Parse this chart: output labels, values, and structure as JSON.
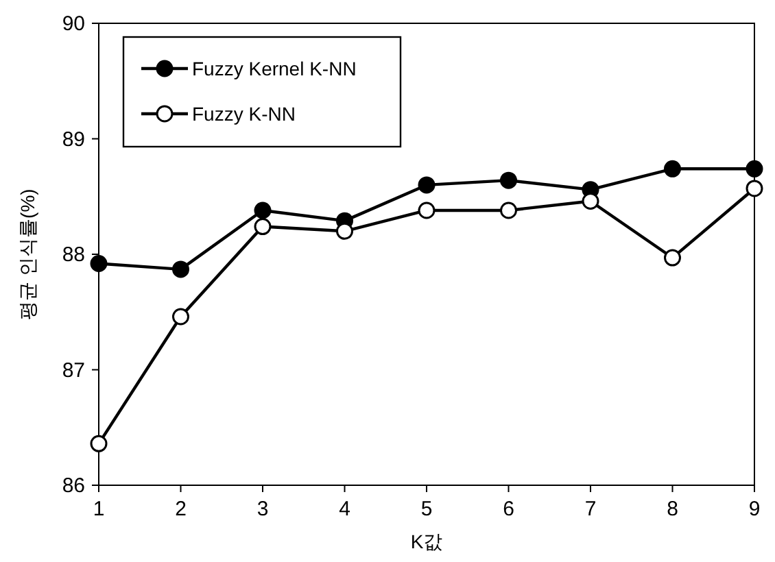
{
  "chart_data": {
    "type": "line",
    "xlabel": "K값",
    "ylabel": "평균 인식률(%)",
    "x": [
      1,
      2,
      3,
      4,
      5,
      6,
      7,
      8,
      9
    ],
    "series": [
      {
        "name": "Fuzzy Kernel K-NN",
        "color": "#000000",
        "values": [
          87.92,
          87.87,
          88.38,
          88.29,
          88.6,
          88.64,
          88.56,
          88.74,
          88.74
        ]
      },
      {
        "name": "Fuzzy K-NN",
        "color": "#000000",
        "values": [
          86.36,
          87.46,
          88.24,
          88.2,
          88.38,
          88.38,
          88.46,
          87.97,
          88.57
        ]
      }
    ],
    "xlim": [
      1,
      9
    ],
    "xticks": [
      1,
      2,
      3,
      4,
      5,
      6,
      7,
      8,
      9
    ],
    "ylim": [
      86,
      90
    ],
    "yticks": [
      86,
      87,
      88,
      89,
      90
    ],
    "marker": "circle",
    "line_style": "solid",
    "grid": false,
    "legend": "top left"
  }
}
